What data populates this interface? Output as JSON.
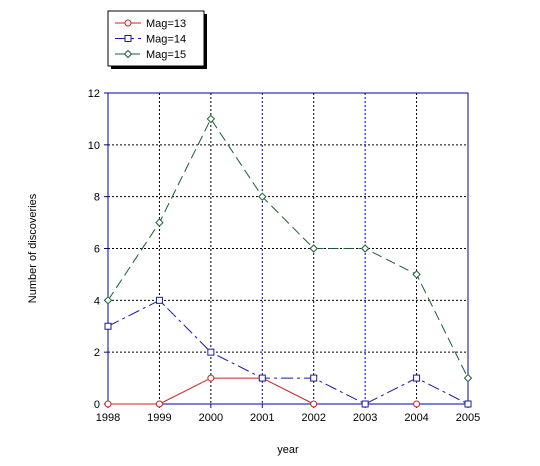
{
  "chart_data": {
    "type": "line",
    "title": "",
    "xlabel": "year",
    "ylabel": "Number of discoveries",
    "x": [
      1998,
      1999,
      2000,
      2001,
      2002,
      2003,
      2004,
      2005
    ],
    "x_ticks": [
      "1998",
      "1999",
      "2000",
      "2001",
      "2002",
      "2003",
      "2004",
      "2005"
    ],
    "y_ticks": [
      "0",
      "2",
      "4",
      "6",
      "8",
      "10",
      "12"
    ],
    "xlim": [
      1998,
      2005
    ],
    "ylim": [
      0,
      12
    ],
    "grid": true,
    "legend_position": "top-left (outside, above plot)",
    "series": [
      {
        "name": "Mag=13",
        "values": [
          0,
          0,
          1,
          1,
          0,
          null,
          0,
          null
        ],
        "color": "#cc2222",
        "marker": "circle",
        "dash": "solid"
      },
      {
        "name": "Mag=14",
        "values": [
          3,
          4,
          2,
          1,
          1,
          0,
          1,
          0
        ],
        "color": "#1a1aa0",
        "marker": "square",
        "dash": "dashdot"
      },
      {
        "name": "Mag=15",
        "values": [
          4,
          7,
          11,
          8,
          6,
          6,
          5,
          1
        ],
        "color": "#1b5e32",
        "marker": "diamond",
        "dash": "dashed"
      }
    ],
    "colors": {
      "axis": "#0000aa",
      "grid": "#000000",
      "grid_major_x": "#0000aa"
    }
  }
}
